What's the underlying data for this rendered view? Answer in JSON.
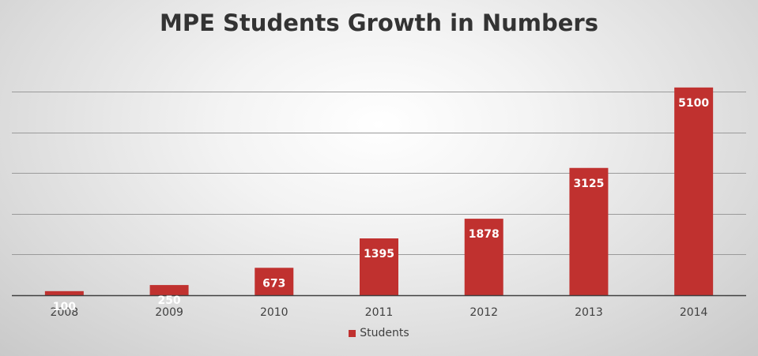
{
  "chart_data": {
    "type": "bar",
    "title": "MPE Students Growth in Numbers",
    "categories": [
      "2008",
      "2009",
      "2010",
      "2011",
      "2012",
      "2013",
      "2014"
    ],
    "series": [
      {
        "name": "Students",
        "values": [
          100,
          250,
          673,
          1395,
          1878,
          3125,
          5100
        ],
        "color": "#c0312f"
      }
    ],
    "data_labels": [
      "100",
      "250",
      "673",
      "1395",
      "1878",
      "3125",
      "5100"
    ],
    "ylim": [
      0,
      5000
    ],
    "y_major_step": 1000,
    "grid": true,
    "legend": "bottom",
    "xlabel": "",
    "ylabel": ""
  },
  "colors": {
    "bar": "#c0312f",
    "gridline": "#9a9a9a",
    "axis": "#404040"
  }
}
